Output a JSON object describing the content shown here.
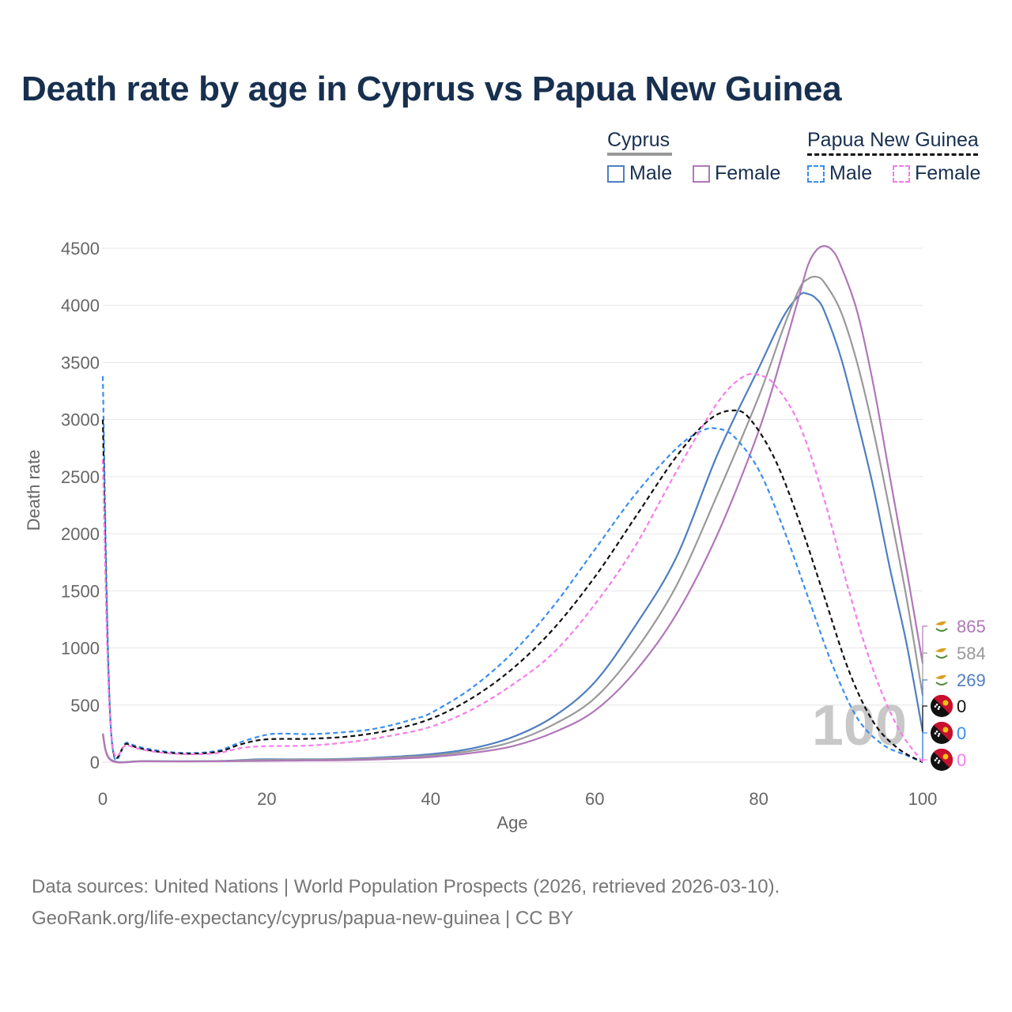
{
  "title": "Death rate by age in Cyprus vs Papua New Guinea",
  "legend": {
    "groups": [
      {
        "name": "Cyprus",
        "line_color": "#999999",
        "dashed": false,
        "items": [
          {
            "label": "Male",
            "color": "#4f7ec0"
          },
          {
            "label": "Female",
            "color": "#b077b8"
          }
        ]
      },
      {
        "name": "Papua New Guinea",
        "line_color": "#111111",
        "dashed": true,
        "items": [
          {
            "label": "Male",
            "color": "#3b8ef0"
          },
          {
            "label": "Female",
            "color": "#f57cea"
          }
        ]
      }
    ]
  },
  "year_watermark": "100",
  "footer": {
    "line1": "Data sources: United Nations | World Population Prospects (2026, retrieved 2026-03-10).",
    "line2": "GeoRank.org/life-expectancy/cyprus/papua-new-guinea | CC BY"
  },
  "chart_data": {
    "type": "line",
    "xlabel": "Age",
    "ylabel": "Death rate",
    "xlim": [
      0,
      100
    ],
    "ylim": [
      0,
      4500
    ],
    "x_ticks": [
      "0",
      "20",
      "40",
      "60",
      "80",
      "100"
    ],
    "y_ticks": [
      "0",
      "500",
      "1000",
      "1500",
      "2000",
      "2500",
      "3000",
      "3500",
      "4000",
      "4500"
    ],
    "grid": true,
    "legend_position": "top-right",
    "end_labels": [
      {
        "text": "865",
        "color": "#b077b8",
        "flag": "cyprus"
      },
      {
        "text": "584",
        "color": "#999999",
        "flag": "cyprus"
      },
      {
        "text": "269",
        "color": "#4f7ec0",
        "flag": "cyprus"
      },
      {
        "text": "0",
        "color": "#111111",
        "flag": "png"
      },
      {
        "text": "0",
        "color": "#3b8ef0",
        "flag": "png"
      },
      {
        "text": "0",
        "color": "#f57cea",
        "flag": "png"
      }
    ],
    "series": [
      {
        "name": "Cyprus Male",
        "color": "#4f7ec0",
        "dashed": false,
        "points": [
          [
            0,
            250
          ],
          [
            1,
            20
          ],
          [
            5,
            10
          ],
          [
            10,
            8
          ],
          [
            15,
            12
          ],
          [
            18,
            22
          ],
          [
            20,
            25
          ],
          [
            25,
            25
          ],
          [
            30,
            30
          ],
          [
            35,
            45
          ],
          [
            40,
            70
          ],
          [
            45,
            120
          ],
          [
            50,
            220
          ],
          [
            55,
            400
          ],
          [
            60,
            700
          ],
          [
            65,
            1200
          ],
          [
            70,
            1800
          ],
          [
            75,
            2700
          ],
          [
            80,
            3450
          ],
          [
            83,
            3900
          ],
          [
            85,
            4090
          ],
          [
            86,
            4100
          ],
          [
            87,
            4060
          ],
          [
            88,
            3950
          ],
          [
            90,
            3550
          ],
          [
            92,
            3000
          ],
          [
            94,
            2400
          ],
          [
            96,
            1700
          ],
          [
            98,
            1050
          ],
          [
            100,
            269
          ]
        ]
      },
      {
        "name": "Cyprus Both sexes",
        "color": "#999999",
        "dashed": false,
        "points": [
          [
            0,
            250
          ],
          [
            1,
            18
          ],
          [
            5,
            9
          ],
          [
            10,
            7
          ],
          [
            15,
            10
          ],
          [
            18,
            18
          ],
          [
            20,
            20
          ],
          [
            25,
            22
          ],
          [
            30,
            25
          ],
          [
            35,
            38
          ],
          [
            40,
            58
          ],
          [
            45,
            100
          ],
          [
            50,
            180
          ],
          [
            55,
            330
          ],
          [
            60,
            560
          ],
          [
            65,
            980
          ],
          [
            70,
            1550
          ],
          [
            75,
            2350
          ],
          [
            80,
            3200
          ],
          [
            83,
            3800
          ],
          [
            85,
            4150
          ],
          [
            86,
            4230
          ],
          [
            87,
            4250
          ],
          [
            88,
            4200
          ],
          [
            90,
            3950
          ],
          [
            92,
            3500
          ],
          [
            94,
            2900
          ],
          [
            96,
            2200
          ],
          [
            98,
            1450
          ],
          [
            100,
            584
          ]
        ]
      },
      {
        "name": "Cyprus Female",
        "color": "#b077b8",
        "dashed": false,
        "points": [
          [
            0,
            250
          ],
          [
            1,
            16
          ],
          [
            5,
            8
          ],
          [
            10,
            6
          ],
          [
            15,
            8
          ],
          [
            20,
            12
          ],
          [
            25,
            15
          ],
          [
            30,
            18
          ],
          [
            35,
            28
          ],
          [
            40,
            45
          ],
          [
            45,
            80
          ],
          [
            50,
            140
          ],
          [
            55,
            260
          ],
          [
            60,
            450
          ],
          [
            65,
            800
          ],
          [
            70,
            1300
          ],
          [
            75,
            2000
          ],
          [
            80,
            2900
          ],
          [
            83,
            3600
          ],
          [
            85,
            4100
          ],
          [
            86,
            4350
          ],
          [
            87,
            4480
          ],
          [
            88,
            4520
          ],
          [
            89,
            4480
          ],
          [
            90,
            4350
          ],
          [
            92,
            3950
          ],
          [
            94,
            3300
          ],
          [
            96,
            2500
          ],
          [
            98,
            1700
          ],
          [
            100,
            865
          ]
        ]
      },
      {
        "name": "Papua New Guinea Male",
        "color": "#3b8ef0",
        "dashed": true,
        "points": [
          [
            0,
            3380
          ],
          [
            1,
            280
          ],
          [
            3,
            170
          ],
          [
            6,
            110
          ],
          [
            10,
            80
          ],
          [
            14,
            100
          ],
          [
            17,
            180
          ],
          [
            20,
            240
          ],
          [
            22,
            250
          ],
          [
            25,
            245
          ],
          [
            28,
            255
          ],
          [
            32,
            280
          ],
          [
            35,
            320
          ],
          [
            38,
            380
          ],
          [
            40,
            430
          ],
          [
            45,
            650
          ],
          [
            50,
            960
          ],
          [
            55,
            1370
          ],
          [
            60,
            1860
          ],
          [
            65,
            2350
          ],
          [
            70,
            2750
          ],
          [
            73,
            2900
          ],
          [
            75,
            2920
          ],
          [
            77,
            2850
          ],
          [
            80,
            2560
          ],
          [
            83,
            2050
          ],
          [
            86,
            1450
          ],
          [
            89,
            850
          ],
          [
            92,
            390
          ],
          [
            95,
            160
          ],
          [
            98,
            60
          ],
          [
            100,
            0
          ]
        ]
      },
      {
        "name": "Papua New Guinea Both sexes",
        "color": "#111111",
        "dashed": true,
        "points": [
          [
            0,
            3000
          ],
          [
            1,
            270
          ],
          [
            3,
            160
          ],
          [
            6,
            100
          ],
          [
            10,
            75
          ],
          [
            14,
            90
          ],
          [
            17,
            160
          ],
          [
            20,
            200
          ],
          [
            25,
            205
          ],
          [
            30,
            225
          ],
          [
            35,
            280
          ],
          [
            40,
            380
          ],
          [
            45,
            560
          ],
          [
            50,
            820
          ],
          [
            55,
            1170
          ],
          [
            60,
            1620
          ],
          [
            65,
            2150
          ],
          [
            70,
            2680
          ],
          [
            74,
            3000
          ],
          [
            77,
            3080
          ],
          [
            79,
            3000
          ],
          [
            82,
            2650
          ],
          [
            85,
            2100
          ],
          [
            88,
            1450
          ],
          [
            91,
            800
          ],
          [
            94,
            350
          ],
          [
            97,
            120
          ],
          [
            100,
            0
          ]
        ]
      },
      {
        "name": "Papua New Guinea Female",
        "color": "#f57cea",
        "dashed": true,
        "points": [
          [
            0,
            2650
          ],
          [
            1,
            260
          ],
          [
            3,
            150
          ],
          [
            6,
            95
          ],
          [
            10,
            70
          ],
          [
            14,
            80
          ],
          [
            17,
            125
          ],
          [
            20,
            140
          ],
          [
            25,
            145
          ],
          [
            30,
            175
          ],
          [
            35,
            230
          ],
          [
            40,
            310
          ],
          [
            45,
            460
          ],
          [
            50,
            680
          ],
          [
            55,
            960
          ],
          [
            60,
            1380
          ],
          [
            65,
            1900
          ],
          [
            70,
            2550
          ],
          [
            75,
            3150
          ],
          [
            78,
            3370
          ],
          [
            80,
            3390
          ],
          [
            82,
            3300
          ],
          [
            85,
            2950
          ],
          [
            88,
            2300
          ],
          [
            91,
            1500
          ],
          [
            94,
            800
          ],
          [
            97,
            300
          ],
          [
            100,
            0
          ]
        ]
      }
    ]
  }
}
